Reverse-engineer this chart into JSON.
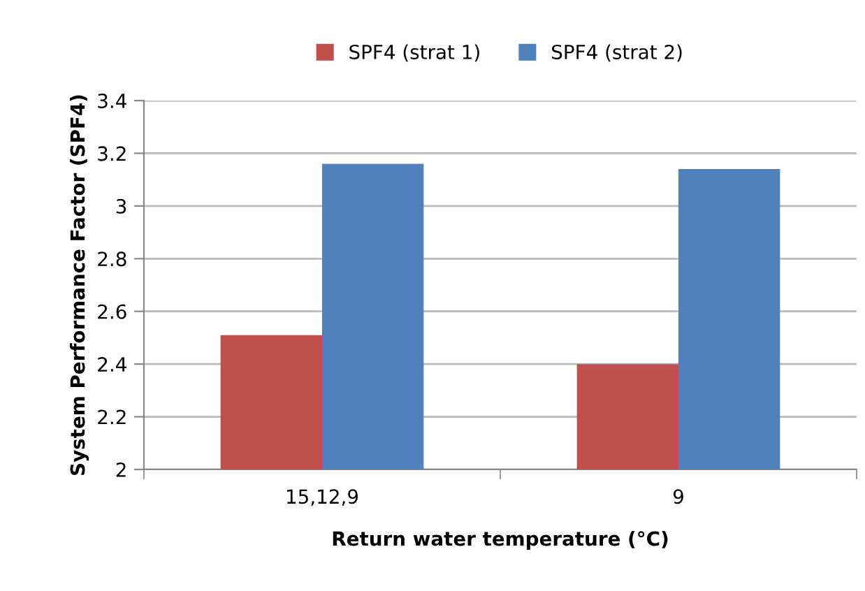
{
  "chart_data": {
    "type": "bar",
    "xlabel": "Return water temperature (°C)",
    "ylabel": "System Performance Factor (SPF4)",
    "categories": [
      "15,12,9",
      "9"
    ],
    "series": [
      {
        "name": "SPF4 (strat 1)",
        "color": "#c0504d",
        "values": [
          2.51,
          2.4
        ]
      },
      {
        "name": "SPF4 (strat 2)",
        "color": "#4f81bd",
        "values": [
          3.16,
          3.14
        ]
      }
    ],
    "ylim": [
      2,
      3.4
    ],
    "yticks": [
      2,
      2.2,
      2.4,
      2.6,
      2.8,
      3,
      3.2,
      3.4
    ],
    "grid": "y",
    "legend": "top"
  }
}
